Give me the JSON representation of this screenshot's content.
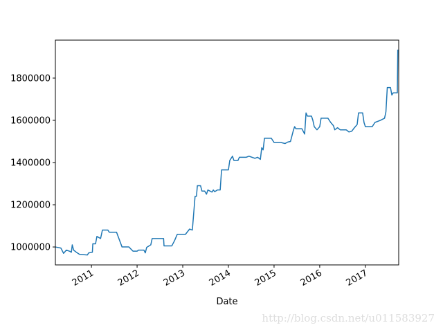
{
  "chart_data": {
    "type": "line",
    "xlabel": "Date",
    "color": "#1f77b4",
    "annotation": "http://blog.csdn.net/u011583927",
    "x": [
      2010.21,
      2010.33,
      2010.39,
      2010.45,
      2010.52,
      2010.56,
      2010.58,
      2010.61,
      2010.67,
      2010.74,
      2010.91,
      2010.94,
      2011.02,
      2011.03,
      2011.09,
      2011.12,
      2011.2,
      2011.24,
      2011.36,
      2011.39,
      2011.55,
      2011.67,
      2011.82,
      2011.91,
      2012.0,
      2012.03,
      2012.15,
      2012.18,
      2012.21,
      2012.3,
      2012.33,
      2012.58,
      2012.59,
      2012.76,
      2012.82,
      2012.88,
      2013.06,
      2013.15,
      2013.21,
      2013.27,
      2013.3,
      2013.32,
      2013.39,
      2013.42,
      2013.48,
      2013.52,
      2013.55,
      2013.64,
      2013.67,
      2013.7,
      2013.76,
      2013.82,
      2013.85,
      2014.0,
      2014.03,
      2014.09,
      2014.12,
      2014.21,
      2014.24,
      2014.39,
      2014.45,
      2014.58,
      2014.64,
      2014.7,
      2014.73,
      2014.76,
      2014.79,
      2014.94,
      2015.0,
      2015.15,
      2015.24,
      2015.3,
      2015.36,
      2015.42,
      2015.45,
      2015.48,
      2015.61,
      2015.67,
      2015.7,
      2015.73,
      2015.82,
      2015.85,
      2015.88,
      2015.94,
      2016.0,
      2016.03,
      2016.18,
      2016.24,
      2016.3,
      2016.33,
      2016.39,
      2016.45,
      2016.58,
      2016.64,
      2016.7,
      2016.76,
      2016.82,
      2016.85,
      2016.94,
      2016.97,
      2017.0,
      2017.15,
      2017.21,
      2017.33,
      2017.42,
      2017.45,
      2017.48,
      2017.55,
      2017.58,
      2017.61,
      2017.7,
      2017.71
    ],
    "values": [
      1000000,
      995000,
      970000,
      985000,
      980000,
      975000,
      1010000,
      985000,
      975000,
      965000,
      962000,
      972000,
      975000,
      1015000,
      1015000,
      1050000,
      1040000,
      1080000,
      1080000,
      1070000,
      1070000,
      1000000,
      1000000,
      980000,
      980000,
      985000,
      985000,
      972000,
      998000,
      1010000,
      1040000,
      1040000,
      1005000,
      1005000,
      1030000,
      1060000,
      1060000,
      1085000,
      1080000,
      1240000,
      1240000,
      1290000,
      1290000,
      1265000,
      1265000,
      1250000,
      1270000,
      1260000,
      1270000,
      1262000,
      1270000,
      1270000,
      1365000,
      1365000,
      1410000,
      1430000,
      1410000,
      1410000,
      1425000,
      1425000,
      1430000,
      1420000,
      1425000,
      1415000,
      1470000,
      1460000,
      1515000,
      1515000,
      1495000,
      1495000,
      1490000,
      1497000,
      1500000,
      1550000,
      1570000,
      1560000,
      1560000,
      1535000,
      1635000,
      1620000,
      1620000,
      1600000,
      1570000,
      1555000,
      1570000,
      1610000,
      1610000,
      1590000,
      1575000,
      1555000,
      1565000,
      1555000,
      1555000,
      1545000,
      1548000,
      1565000,
      1580000,
      1635000,
      1635000,
      1590000,
      1570000,
      1570000,
      1590000,
      1600000,
      1610000,
      1640000,
      1755000,
      1755000,
      1720000,
      1730000,
      1730000,
      1935000
    ],
    "xlim": [
      2010.21,
      2017.73
    ],
    "xticks": [
      2011,
      2012,
      2013,
      2014,
      2015,
      2016,
      2017
    ],
    "ylim": [
      915000,
      1980000
    ],
    "yticks": [
      1000000,
      1200000,
      1400000,
      1600000,
      1800000
    ]
  }
}
